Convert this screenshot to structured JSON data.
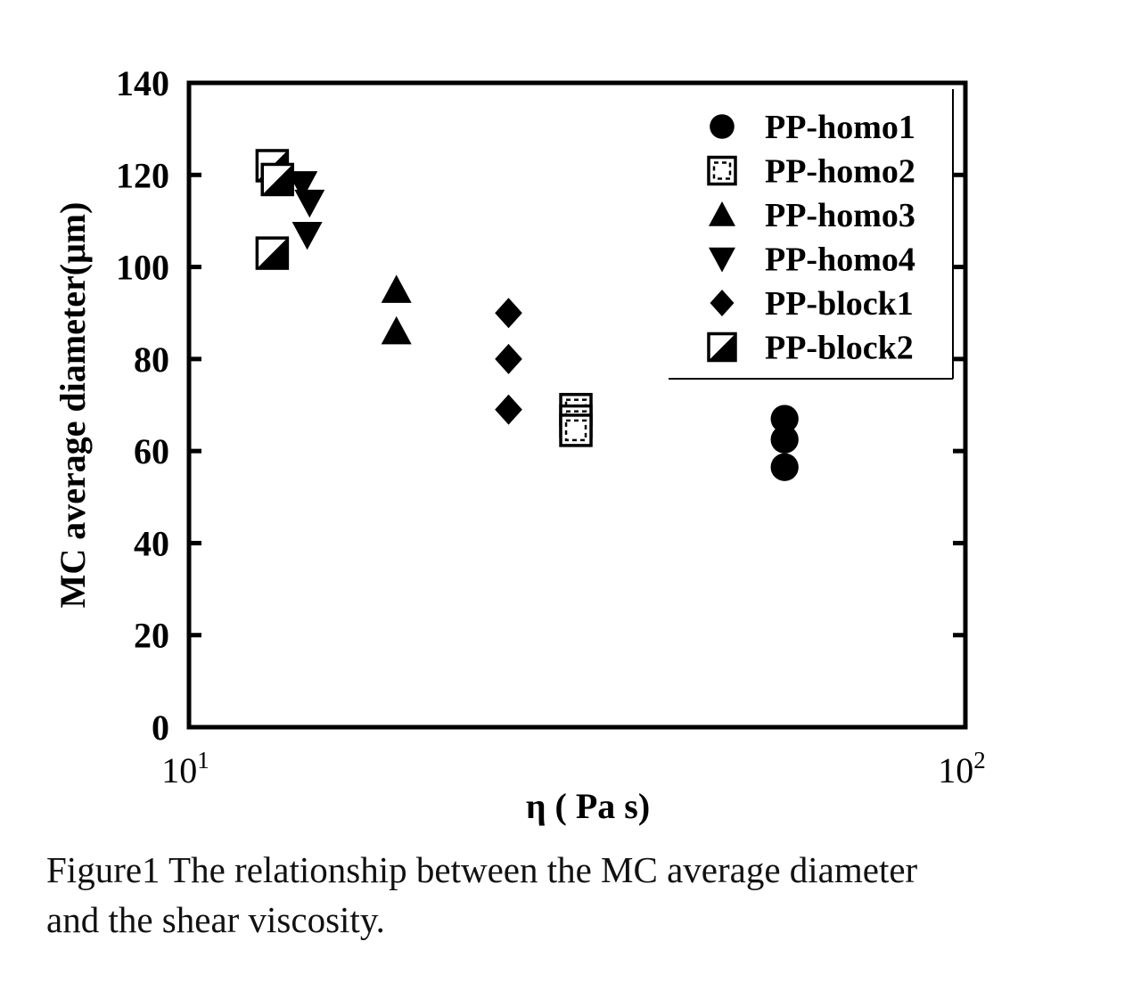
{
  "chart_data": {
    "type": "scatter",
    "title": "",
    "xlabel": "η ( Pa s)",
    "ylabel": "MC average diameter(μm)",
    "xscale": "log",
    "xlim": [
      10,
      100
    ],
    "ylim": [
      0,
      140
    ],
    "x_tick_labels": [
      {
        "value": 10,
        "base": "10",
        "exp": "1"
      },
      {
        "value": 100,
        "base": "10",
        "exp": "2"
      }
    ],
    "y_ticks": [
      0,
      20,
      40,
      60,
      80,
      100,
      120,
      140
    ],
    "y_tick_labels": [
      "0",
      "20",
      "40",
      "60",
      "80",
      "100",
      "120",
      "140"
    ],
    "legend_position": "top-right",
    "series": [
      {
        "name": "PP-homo1",
        "marker": "circle",
        "fill": "#000000",
        "points": [
          {
            "x": 58.5,
            "y": 67
          },
          {
            "x": 58.5,
            "y": 62.5
          },
          {
            "x": 58.5,
            "y": 56.5
          }
        ]
      },
      {
        "name": "PP-homo2",
        "marker": "square-open-dashed",
        "fill": "#ffffff",
        "points": [
          {
            "x": 31.5,
            "y": 69
          },
          {
            "x": 31.5,
            "y": 66.5
          },
          {
            "x": 31.5,
            "y": 64.5
          }
        ]
      },
      {
        "name": "PP-homo3",
        "marker": "triangle-up",
        "fill": "#000000",
        "points": [
          {
            "x": 18.5,
            "y": 95
          },
          {
            "x": 18.5,
            "y": 86
          }
        ]
      },
      {
        "name": "PP-homo4",
        "marker": "triangle-down",
        "fill": "#000000",
        "points": [
          {
            "x": 14,
            "y": 118
          },
          {
            "x": 14.3,
            "y": 114
          },
          {
            "x": 14.2,
            "y": 107
          }
        ]
      },
      {
        "name": "PP-block1",
        "marker": "diamond",
        "fill": "#000000",
        "points": [
          {
            "x": 25.8,
            "y": 90
          },
          {
            "x": 25.8,
            "y": 80
          },
          {
            "x": 25.8,
            "y": 69
          }
        ]
      },
      {
        "name": "PP-block2",
        "marker": "square-half",
        "fill": "#000000",
        "points": [
          {
            "x": 12.8,
            "y": 122
          },
          {
            "x": 13,
            "y": 119
          },
          {
            "x": 12.8,
            "y": 103
          }
        ]
      }
    ]
  },
  "caption": {
    "line1": "Figure1 The relationship between the MC average diameter",
    "line2": "and the shear viscosity."
  }
}
